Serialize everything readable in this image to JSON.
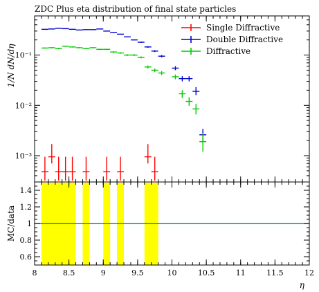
{
  "chart_data": [
    {
      "type": "scatter",
      "title": "ZDC Plus eta distribution of final state particles",
      "xlabel": "η",
      "ylabel": "1/N dN/dη",
      "xlim": [
        8,
        12
      ],
      "ylim": [
        0.0003,
        0.6
      ],
      "yscale": "log",
      "legend_position": "top-right",
      "ytick_labels": [
        "10⁻³",
        "10⁻²",
        "10⁻¹"
      ],
      "ytick_values": [
        0.001,
        0.01,
        0.1
      ],
      "series": [
        {
          "name": "Single Diffractive",
          "color": "#ff0000",
          "x": [
            8.15,
            8.25,
            8.35,
            8.45,
            8.55,
            8.75,
            9.05,
            9.25,
            9.65,
            9.75
          ],
          "y": [
            0.00048,
            0.00095,
            0.00048,
            0.00048,
            0.00048,
            0.00048,
            0.00048,
            0.00048,
            0.00095,
            0.00048
          ],
          "ylow": [
            0.00032,
            0.0007,
            0.00032,
            0.00032,
            0.00032,
            0.00032,
            0.00032,
            0.00032,
            0.0007,
            0.00032
          ],
          "yhigh": [
            0.00095,
            0.0017,
            0.00095,
            0.00095,
            0.00095,
            0.00095,
            0.00095,
            0.00095,
            0.0017,
            0.00095
          ]
        },
        {
          "name": "Double Diffractive",
          "color": "#0000cc",
          "x": [
            8.15,
            8.25,
            8.35,
            8.45,
            8.55,
            8.65,
            8.75,
            8.85,
            8.95,
            9.05,
            9.15,
            9.25,
            9.35,
            9.45,
            9.55,
            9.65,
            9.75,
            9.85,
            10.05,
            10.15,
            10.25,
            10.35,
            10.45
          ],
          "y": [
            0.325,
            0.33,
            0.34,
            0.335,
            0.325,
            0.315,
            0.32,
            0.32,
            0.33,
            0.3,
            0.28,
            0.26,
            0.23,
            0.2,
            0.18,
            0.145,
            0.12,
            0.095,
            0.055,
            0.034,
            0.034,
            0.019,
            0.0026
          ],
          "ylow": [
            0.32,
            0.325,
            0.335,
            0.33,
            0.32,
            0.31,
            0.315,
            0.315,
            0.325,
            0.295,
            0.275,
            0.255,
            0.225,
            0.195,
            0.175,
            0.14,
            0.115,
            0.09,
            0.05,
            0.03,
            0.03,
            0.016,
            0.0019
          ],
          "yhigh": [
            0.33,
            0.335,
            0.345,
            0.34,
            0.33,
            0.32,
            0.325,
            0.325,
            0.335,
            0.305,
            0.285,
            0.265,
            0.235,
            0.205,
            0.185,
            0.15,
            0.125,
            0.1,
            0.06,
            0.038,
            0.038,
            0.023,
            0.0034
          ]
        },
        {
          "name": "Diffractive",
          "color": "#00cc00",
          "x": [
            8.15,
            8.25,
            8.35,
            8.45,
            8.55,
            8.65,
            8.75,
            8.85,
            8.95,
            9.05,
            9.15,
            9.25,
            9.35,
            9.45,
            9.55,
            9.65,
            9.75,
            9.85,
            10.05,
            10.15,
            10.25,
            10.35,
            10.45
          ],
          "y": [
            0.138,
            0.14,
            0.135,
            0.15,
            0.145,
            0.14,
            0.135,
            0.14,
            0.13,
            0.13,
            0.115,
            0.11,
            0.1,
            0.1,
            0.09,
            0.058,
            0.05,
            0.044,
            0.037,
            0.017,
            0.012,
            0.0085,
            0.0019
          ],
          "ylow": [
            0.134,
            0.136,
            0.131,
            0.146,
            0.141,
            0.136,
            0.131,
            0.136,
            0.126,
            0.126,
            0.111,
            0.106,
            0.096,
            0.096,
            0.086,
            0.054,
            0.046,
            0.04,
            0.033,
            0.014,
            0.0098,
            0.0066,
            0.0012
          ],
          "yhigh": [
            0.142,
            0.144,
            0.139,
            0.154,
            0.149,
            0.144,
            0.139,
            0.144,
            0.134,
            0.134,
            0.119,
            0.114,
            0.104,
            0.104,
            0.094,
            0.062,
            0.054,
            0.048,
            0.041,
            0.02,
            0.0145,
            0.0107,
            0.0028
          ]
        }
      ]
    },
    {
      "type": "area",
      "xlabel": "η",
      "ylabel": "MC/data",
      "xlim": [
        8,
        12
      ],
      "ylim": [
        0.5,
        1.5
      ],
      "xtick_labels": [
        "8",
        "8.5",
        "9",
        "9.5",
        "10",
        "10.5",
        "11",
        "11.5",
        "12"
      ],
      "xtick_values": [
        8,
        8.5,
        9,
        9.5,
        10,
        10.5,
        11,
        11.5,
        12
      ],
      "ytick_labels": [
        "0.6",
        "0.8",
        "1",
        "1.2",
        "1.4"
      ],
      "ytick_values": [
        0.6,
        0.8,
        1.0,
        1.2,
        1.4
      ],
      "reference_line": 1.0,
      "reference_color": "#00aa00",
      "band_color": "#ffff00",
      "bands": [
        [
          8.1,
          8.6
        ],
        [
          8.7,
          8.8
        ],
        [
          9.0,
          9.1
        ],
        [
          9.2,
          9.3
        ],
        [
          9.6,
          9.8
        ]
      ]
    }
  ]
}
